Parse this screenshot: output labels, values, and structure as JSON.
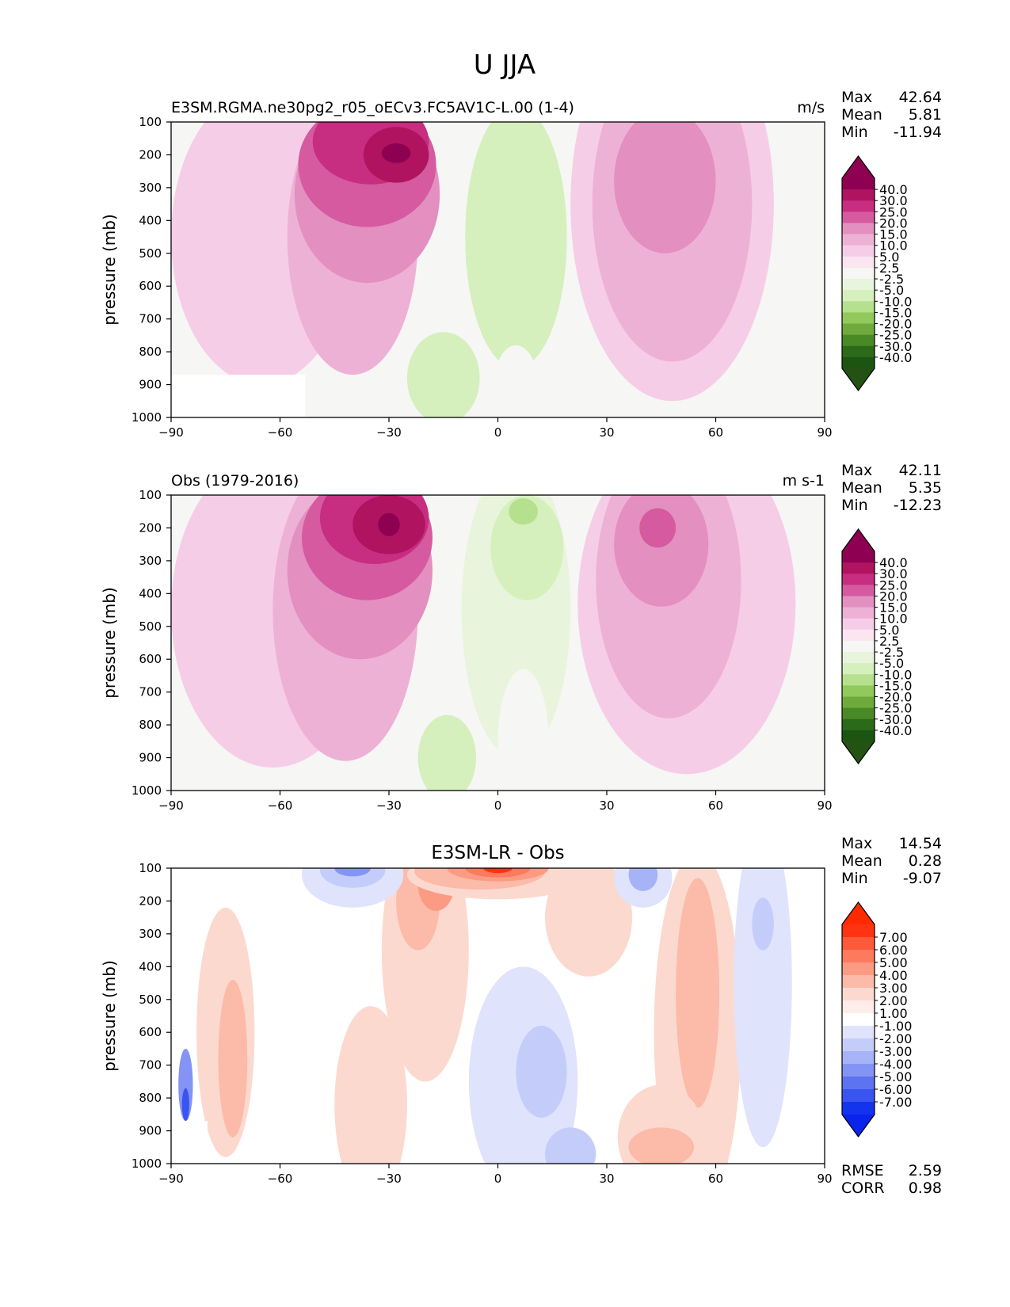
{
  "figure": {
    "title": "U JJA"
  },
  "panels": [
    {
      "id": "test",
      "left_title": "E3SM.RGMA.ne30pg2_r05_oECv3.FC5AV1C-L.00 (1-4)",
      "center_title": "",
      "right_title": "m/s",
      "ylabel": "pressure (mb)",
      "stats": [
        {
          "label": "Max",
          "value": "42.64"
        },
        {
          "label": "Mean",
          "value": "5.81"
        },
        {
          "label": "Min",
          "value": "-11.94"
        }
      ],
      "colorbar": {
        "labels": [
          "40.0",
          "30.0",
          "25.0",
          "20.0",
          "15.0",
          "10.0",
          "5.0",
          "2.5",
          "-2.5",
          "-5.0",
          "-10.0",
          "-15.0",
          "-20.0",
          "-25.0",
          "-30.0",
          "-40.0"
        ],
        "colors": [
          "#8e0152",
          "#b0135f",
          "#c72d81",
          "#d55a9f",
          "#e38fc0",
          "#eeb1d6",
          "#f6cde6",
          "#fae5f1",
          "#f6f6f4",
          "#e8f4dc",
          "#d5efbd",
          "#b5e08d",
          "#91c95c",
          "#6faa3d",
          "#4a8a26",
          "#2b6a18",
          "#1c5412"
        ],
        "extend_top": "#8e0152",
        "extend_bottom": "#235214"
      },
      "blobs": [
        {
          "color": "#f6cde6",
          "x": -65,
          "y": 450,
          "rx": 25,
          "ry": 450
        },
        {
          "color": "#eeb1d6",
          "x": -40,
          "y": 450,
          "rx": 18,
          "ry": 420
        },
        {
          "color": "#e38fc0",
          "x": -36,
          "y": 320,
          "rx": 20,
          "ry": 270
        },
        {
          "color": "#d55a9f",
          "x": -36,
          "y": 230,
          "rx": 19,
          "ry": 190
        },
        {
          "color": "#c72d81",
          "x": -35,
          "y": 160,
          "rx": 16,
          "ry": 130
        },
        {
          "color": "#b0135f",
          "x": -28,
          "y": 200,
          "rx": 9,
          "ry": 85
        },
        {
          "color": "#8e0152",
          "x": -28,
          "y": 195,
          "rx": 4,
          "ry": 30
        },
        {
          "color": "#d5efbd",
          "x": 5,
          "y": 450,
          "rx": 14,
          "ry": 400
        },
        {
          "color": "#d5efbd",
          "x": -15,
          "y": 880,
          "rx": 10,
          "ry": 140
        },
        {
          "color": "#f6f6f4",
          "x": 5,
          "y": 900,
          "rx": 6,
          "ry": 120
        },
        {
          "color": "#f6cde6",
          "x": 48,
          "y": 350,
          "rx": 28,
          "ry": 600
        },
        {
          "color": "#eeb1d6",
          "x": 48,
          "y": 350,
          "rx": 22,
          "ry": 480
        },
        {
          "color": "#e38fc0",
          "x": 46,
          "y": 280,
          "rx": 14,
          "ry": 220
        },
        {
          "color": "#e38fc0",
          "x": 46,
          "y": 240,
          "rx": 9,
          "ry": 110
        }
      ],
      "masks": [
        {
          "x0": -90,
          "x1": -53,
          "y0": 870,
          "y1": 1000
        }
      ]
    },
    {
      "id": "ref",
      "left_title": "Obs (1979-2016)",
      "center_title": "",
      "right_title": "m s-1",
      "ylabel": "pressure (mb)",
      "stats": [
        {
          "label": "Max",
          "value": "42.11"
        },
        {
          "label": "Mean",
          "value": "5.35"
        },
        {
          "label": "Min",
          "value": "-12.23"
        }
      ],
      "colorbar": {
        "labels": [
          "40.0",
          "30.0",
          "25.0",
          "20.0",
          "15.0",
          "10.0",
          "5.0",
          "2.5",
          "-2.5",
          "-5.0",
          "-10.0",
          "-15.0",
          "-20.0",
          "-25.0",
          "-30.0",
          "-40.0"
        ],
        "colors": [
          "#8e0152",
          "#b0135f",
          "#c72d81",
          "#d55a9f",
          "#e38fc0",
          "#eeb1d6",
          "#f6cde6",
          "#fae5f1",
          "#f6f6f4",
          "#e8f4dc",
          "#d5efbd",
          "#b5e08d",
          "#91c95c",
          "#6faa3d",
          "#4a8a26",
          "#2b6a18",
          "#1c5412"
        ],
        "extend_top": "#8e0152",
        "extend_bottom": "#235214"
      },
      "blobs": [
        {
          "color": "#f6cde6",
          "x": -62,
          "y": 450,
          "rx": 28,
          "ry": 480
        },
        {
          "color": "#eeb1d6",
          "x": -42,
          "y": 450,
          "rx": 20,
          "ry": 460
        },
        {
          "color": "#e38fc0",
          "x": -38,
          "y": 330,
          "rx": 20,
          "ry": 270
        },
        {
          "color": "#d55a9f",
          "x": -36,
          "y": 230,
          "rx": 18,
          "ry": 190
        },
        {
          "color": "#c72d81",
          "x": -34,
          "y": 170,
          "rx": 15,
          "ry": 140
        },
        {
          "color": "#b0135f",
          "x": -30,
          "y": 190,
          "rx": 10,
          "ry": 90
        },
        {
          "color": "#8e0152",
          "x": -30,
          "y": 190,
          "rx": 3,
          "ry": 35
        },
        {
          "color": "#e8f4dc",
          "x": 5,
          "y": 450,
          "rx": 15,
          "ry": 450
        },
        {
          "color": "#d5efbd",
          "x": 8,
          "y": 260,
          "rx": 10,
          "ry": 160
        },
        {
          "color": "#b5e08d",
          "x": 7,
          "y": 150,
          "rx": 4,
          "ry": 40
        },
        {
          "color": "#d5efbd",
          "x": -14,
          "y": 900,
          "rx": 8,
          "ry": 130
        },
        {
          "color": "#f6f6f4",
          "x": 7,
          "y": 850,
          "rx": 7,
          "ry": 220
        },
        {
          "color": "#f6cde6",
          "x": 52,
          "y": 430,
          "rx": 30,
          "ry": 520
        },
        {
          "color": "#eeb1d6",
          "x": 47,
          "y": 360,
          "rx": 20,
          "ry": 420
        },
        {
          "color": "#e38fc0",
          "x": 45,
          "y": 250,
          "rx": 13,
          "ry": 190
        },
        {
          "color": "#d55a9f",
          "x": 44,
          "y": 200,
          "rx": 5,
          "ry": 60
        }
      ],
      "masks": []
    },
    {
      "id": "diff",
      "left_title": "",
      "center_title": "E3SM-LR - Obs",
      "right_title": "",
      "ylabel": "pressure (mb)",
      "stats": [
        {
          "label": "Max",
          "value": "14.54"
        },
        {
          "label": "Mean",
          "value": "0.28"
        },
        {
          "label": "Min",
          "value": "-9.07"
        }
      ],
      "extra_stats": [
        {
          "label": "RMSE",
          "value": "2.59"
        },
        {
          "label": "CORR",
          "value": "0.98"
        }
      ],
      "colorbar": {
        "labels": [
          "7.00",
          "6.00",
          "5.00",
          "4.00",
          "3.00",
          "2.00",
          "1.00",
          "-1.00",
          "-2.00",
          "-3.00",
          "-4.00",
          "-5.00",
          "-6.00",
          "-7.00"
        ],
        "colors": [
          "#ff3311",
          "#fe5a3a",
          "#fd7a5e",
          "#fc9b84",
          "#fcbaa8",
          "#fcd9cf",
          "#fdecea",
          "#ffffff",
          "#dfe3fb",
          "#c4cdfa",
          "#a6b3f7",
          "#8494f4",
          "#5c74f0",
          "#3954f0",
          "#1433ee"
        ],
        "extend_top": "#ff2a00",
        "extend_bottom": "#0a24ee"
      },
      "blobs": [
        {
          "color": "#fcd9cf",
          "x": -20,
          "y": 350,
          "rx": 12,
          "ry": 400
        },
        {
          "color": "#fcd9cf",
          "x": -35,
          "y": 820,
          "rx": 10,
          "ry": 300
        },
        {
          "color": "#fcd9cf",
          "x": -75,
          "y": 600,
          "rx": 8,
          "ry": 380
        },
        {
          "color": "#fcbaa8",
          "x": -73,
          "y": 680,
          "rx": 4,
          "ry": 240
        },
        {
          "color": "#fcd9cf",
          "x": 55,
          "y": 600,
          "rx": 12,
          "ry": 550
        },
        {
          "color": "#fcbaa8",
          "x": 55,
          "y": 480,
          "rx": 6,
          "ry": 350
        },
        {
          "color": "#fcd9cf",
          "x": 25,
          "y": 250,
          "rx": 12,
          "ry": 180
        },
        {
          "color": "#fcbaa8",
          "x": -22,
          "y": 200,
          "rx": 6,
          "ry": 150
        },
        {
          "color": "#fc9b84",
          "x": -17,
          "y": 150,
          "rx": 5,
          "ry": 80
        },
        {
          "color": "#fcd9cf",
          "x": 0,
          "y": 120,
          "rx": 25,
          "ry": 75
        },
        {
          "color": "#fcbaa8",
          "x": -5,
          "y": 110,
          "rx": 18,
          "ry": 55
        },
        {
          "color": "#fc9b84",
          "x": 0,
          "y": 100,
          "rx": 14,
          "ry": 40
        },
        {
          "color": "#fd7a5e",
          "x": 0,
          "y": 100,
          "rx": 9,
          "ry": 28
        },
        {
          "color": "#ff3311",
          "x": 0,
          "y": 100,
          "rx": 4,
          "ry": 15
        },
        {
          "color": "#dfe3fb",
          "x": -40,
          "y": 120,
          "rx": 14,
          "ry": 100
        },
        {
          "color": "#c4cdfa",
          "x": -40,
          "y": 105,
          "rx": 9,
          "ry": 55
        },
        {
          "color": "#8494f4",
          "x": -40,
          "y": 100,
          "rx": 5,
          "ry": 25
        },
        {
          "color": "#dfe3fb",
          "x": 40,
          "y": 130,
          "rx": 8,
          "ry": 90
        },
        {
          "color": "#a6b3f7",
          "x": 40,
          "y": 120,
          "rx": 4,
          "ry": 50
        },
        {
          "color": "#dfe3fb",
          "x": 73,
          "y": 450,
          "rx": 8,
          "ry": 500
        },
        {
          "color": "#c4cdfa",
          "x": 73,
          "y": 270,
          "rx": 3,
          "ry": 80
        },
        {
          "color": "#dfe3fb",
          "x": 7,
          "y": 750,
          "rx": 15,
          "ry": 350
        },
        {
          "color": "#c4cdfa",
          "x": 12,
          "y": 720,
          "rx": 7,
          "ry": 140
        },
        {
          "color": "#c4cdfa",
          "x": 20,
          "y": 970,
          "rx": 7,
          "ry": 80
        },
        {
          "color": "#fcd9cf",
          "x": 45,
          "y": 920,
          "rx": 12,
          "ry": 160
        },
        {
          "color": "#fcbaa8",
          "x": 45,
          "y": 950,
          "rx": 9,
          "ry": 60
        },
        {
          "color": "#8494f4",
          "x": -86,
          "y": 760,
          "rx": 2,
          "ry": 110
        },
        {
          "color": "#3954f0",
          "x": -86,
          "y": 820,
          "rx": 1,
          "ry": 50
        }
      ],
      "masks": [
        {
          "x0": -90,
          "x1": -80,
          "y0": 870,
          "y1": 1000
        }
      ]
    }
  ],
  "chart_data": [
    {
      "type": "contour",
      "title": "E3SM.RGMA.ne30pg2_r05_oECv3.FC5AV1C-L.00 (1-4)",
      "units": "m/s",
      "xlabel": "",
      "ylabel": "pressure (mb)",
      "x_ticks": [
        -90,
        -60,
        -30,
        0,
        30,
        60,
        90
      ],
      "y_ticks": [
        100,
        200,
        300,
        400,
        500,
        600,
        700,
        800,
        900,
        1000
      ],
      "xlim": [
        -90,
        90
      ],
      "ylim": [
        1000,
        100
      ],
      "levels": [
        -40,
        -30,
        -25,
        -20,
        -15,
        -10,
        -5,
        -2.5,
        2.5,
        5,
        10,
        15,
        20,
        25,
        30,
        40
      ],
      "stats": {
        "max": 42.64,
        "mean": 5.81,
        "min": -11.94
      }
    },
    {
      "type": "contour",
      "title": "Obs (1979-2016)",
      "units": "m s-1",
      "xlabel": "",
      "ylabel": "pressure (mb)",
      "x_ticks": [
        -90,
        -60,
        -30,
        0,
        30,
        60,
        90
      ],
      "y_ticks": [
        100,
        200,
        300,
        400,
        500,
        600,
        700,
        800,
        900,
        1000
      ],
      "xlim": [
        -90,
        90
      ],
      "ylim": [
        1000,
        100
      ],
      "levels": [
        -40,
        -30,
        -25,
        -20,
        -15,
        -10,
        -5,
        -2.5,
        2.5,
        5,
        10,
        15,
        20,
        25,
        30,
        40
      ],
      "stats": {
        "max": 42.11,
        "mean": 5.35,
        "min": -12.23
      }
    },
    {
      "type": "contour",
      "title": "E3SM-LR - Obs",
      "units": "",
      "xlabel": "",
      "ylabel": "pressure (mb)",
      "x_ticks": [
        -90,
        -60,
        -30,
        0,
        30,
        60,
        90
      ],
      "y_ticks": [
        100,
        200,
        300,
        400,
        500,
        600,
        700,
        800,
        900,
        1000
      ],
      "xlim": [
        -90,
        90
      ],
      "ylim": [
        1000,
        100
      ],
      "levels": [
        -7,
        -6,
        -5,
        -4,
        -3,
        -2,
        -1,
        1,
        2,
        3,
        4,
        5,
        6,
        7
      ],
      "stats": {
        "max": 14.54,
        "mean": 0.28,
        "min": -9.07,
        "rmse": 2.59,
        "corr": 0.98
      }
    }
  ]
}
